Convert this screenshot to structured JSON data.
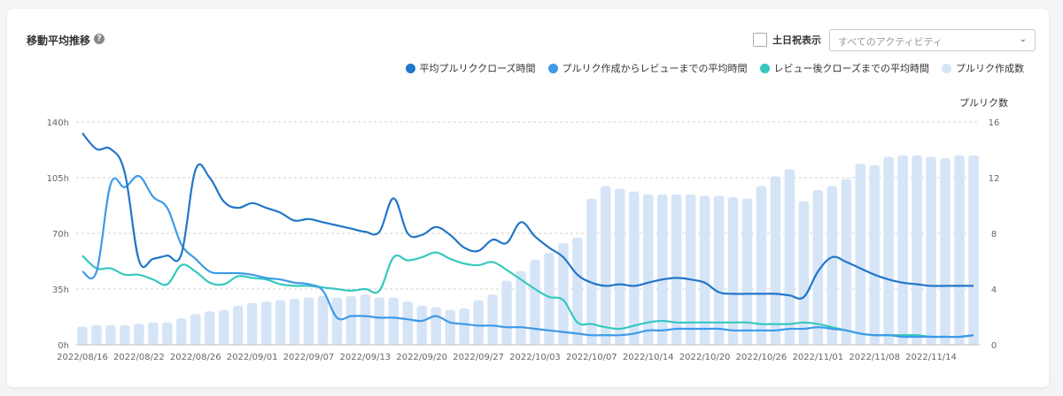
{
  "header": {
    "title": "移動平均推移",
    "help_icon": "question-circle-icon",
    "checkbox_label": "土日祝表示",
    "checkbox_checked": false,
    "select_value": "すべてのアクティビティ",
    "select_icon": "chevron-down-icon"
  },
  "colors": {
    "series1": "#2176c9",
    "series2": "#3d9ae8",
    "series3": "#35c8bf",
    "bars": "#d6e4f7"
  },
  "chart_data": {
    "type": "line",
    "x_tick_labels": [
      "2022/08/16",
      "2022/08/22",
      "2022/08/26",
      "2022/09/01",
      "2022/09/07",
      "2022/09/13",
      "2022/09/20",
      "2022/09/27",
      "2022/10/03",
      "2022/10/07",
      "2022/10/14",
      "2022/10/20",
      "2022/10/26",
      "2022/11/01",
      "2022/11/08",
      "2022/11/14"
    ],
    "x_tick_index": [
      0,
      4,
      8,
      12,
      16,
      20,
      24,
      28,
      32,
      36,
      40,
      44,
      48,
      52,
      56,
      60
    ],
    "y_left": {
      "ticks": [
        "0h",
        "35h",
        "70h",
        "105h",
        "140h"
      ],
      "values": [
        0,
        35,
        70,
        105,
        140
      ],
      "range": [
        0,
        140
      ]
    },
    "y_right": {
      "label": "プルリク数",
      "ticks": [
        "0",
        "4",
        "8",
        "12",
        "16"
      ],
      "values": [
        0,
        4,
        8,
        12,
        16
      ],
      "range": [
        0,
        16
      ]
    },
    "grid": true,
    "legend_position": "top-right",
    "series": [
      {
        "name": "平均プルリククローズ時間",
        "axis": "left",
        "type": "line",
        "values": [
          133,
          123,
          123,
          108,
          53,
          54,
          56,
          57,
          110,
          105,
          90,
          86,
          89,
          86,
          83,
          78,
          79,
          77,
          75,
          73,
          71,
          71,
          92,
          70,
          69,
          74,
          69,
          61,
          59,
          66,
          64,
          77,
          68,
          61,
          55,
          44,
          39,
          37,
          38,
          37,
          39,
          41,
          42,
          41,
          39,
          33,
          32,
          32,
          32,
          32,
          31,
          30,
          46,
          55,
          52,
          48,
          44,
          41,
          39,
          38,
          37,
          37,
          37,
          37
        ]
      },
      {
        "name": "プルリク作成からレビューまでの平均時間",
        "axis": "left",
        "type": "line",
        "values": [
          46,
          46,
          101,
          99,
          106,
          93,
          86,
          63,
          54,
          46,
          45,
          45,
          44,
          42,
          41,
          39,
          38,
          34,
          17,
          18,
          18,
          17,
          17,
          16,
          15,
          18,
          14,
          13,
          12,
          12,
          11,
          11,
          10,
          9,
          8,
          7,
          6,
          6,
          6,
          7,
          9,
          9,
          10,
          10,
          10,
          10,
          9,
          9,
          9,
          9,
          10,
          10,
          11,
          10,
          9,
          7,
          6,
          6,
          5,
          5,
          5,
          5,
          5,
          6
        ]
      },
      {
        "name": "レビュー後クローズまでの平均時間",
        "axis": "left",
        "type": "line",
        "values": [
          56,
          48,
          48,
          44,
          44,
          41,
          38,
          50,
          46,
          39,
          38,
          43,
          42,
          41,
          38,
          37,
          37,
          36,
          35,
          34,
          35,
          34,
          55,
          53,
          55,
          58,
          54,
          51,
          50,
          52,
          47,
          41,
          35,
          30,
          28,
          14,
          13,
          11,
          10,
          12,
          14,
          15,
          14,
          14,
          14,
          14,
          14,
          14,
          13,
          13,
          13,
          14,
          13,
          11,
          9,
          7,
          6,
          6,
          6,
          6,
          5,
          5,
          5,
          6
        ]
      },
      {
        "name": "プルリク作成数",
        "axis": "right",
        "type": "bar",
        "values": [
          1.3,
          1.4,
          1.4,
          1.4,
          1.5,
          1.6,
          1.6,
          1.9,
          2.2,
          2.4,
          2.5,
          2.8,
          3.0,
          3.1,
          3.2,
          3.3,
          3.4,
          3.5,
          3.4,
          3.5,
          3.6,
          3.4,
          3.4,
          3.1,
          2.8,
          2.7,
          2.5,
          2.6,
          3.2,
          3.6,
          4.6,
          5.3,
          6.1,
          6.6,
          7.3,
          7.7,
          10.5,
          11.4,
          11.2,
          11.0,
          10.8,
          10.8,
          10.8,
          10.8,
          10.7,
          10.7,
          10.6,
          10.5,
          11.4,
          12.1,
          12.6,
          10.3,
          11.1,
          11.4,
          11.9,
          13.0,
          12.9,
          13.5,
          13.6,
          13.6,
          13.5,
          13.4,
          13.6,
          13.6
        ]
      }
    ]
  }
}
